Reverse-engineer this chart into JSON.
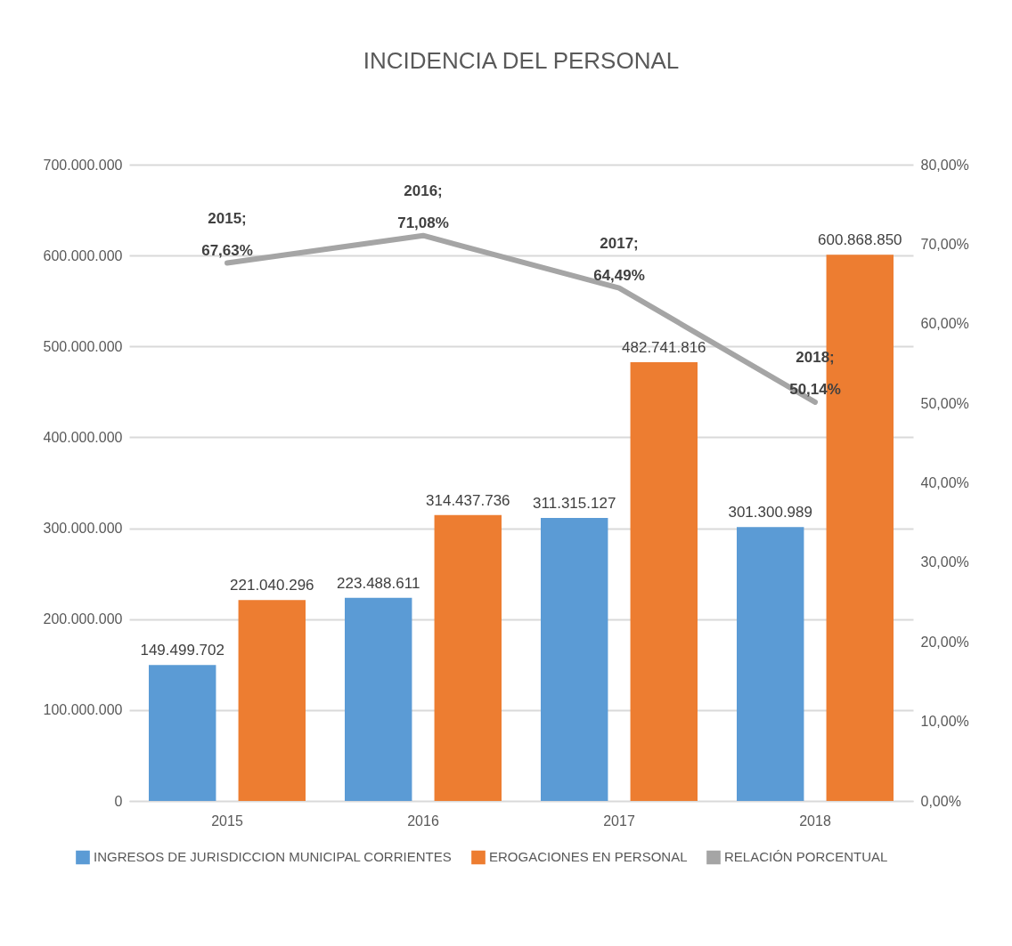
{
  "chart_data": {
    "type": "bar",
    "title": "INCIDENCIA DEL PERSONAL",
    "categories": [
      "2015",
      "2016",
      "2017",
      "2018"
    ],
    "series": [
      {
        "name": "INGRESOS DE JURISDICCION MUNICIPAL CORRIENTES",
        "color": "#5b9bd5",
        "values": [
          149499702,
          223488611,
          311315127,
          301300989
        ],
        "value_labels": [
          "149.499.702",
          "223.488.611",
          "311.315.127",
          "301.300.989"
        ]
      },
      {
        "name": "EROGACIONES EN PERSONAL",
        "color": "#ed7d31",
        "values": [
          221040296,
          314437736,
          482741816,
          600868850
        ],
        "value_labels": [
          "221.040.296",
          "314.437.736",
          "482.741.816",
          "600.868.850"
        ]
      },
      {
        "name": "RELACIÓN PORCENTUAL",
        "type": "line",
        "axis": "y2",
        "color": "#a5a5a5",
        "values": [
          67.63,
          71.08,
          64.49,
          50.14
        ],
        "value_labels": [
          "2015;\n67,63%",
          "2016;\n71,08%",
          "2017;\n64,49%",
          "2018;\n50,14%"
        ]
      }
    ],
    "ylim": [
      0,
      700000000
    ],
    "yticks": [
      0,
      {
        "value": 100000000,
        "label": "100.000.000"
      },
      {
        "value": 200000000,
        "label": "200.000.000"
      },
      {
        "value": 300000000,
        "label": "300.000.000"
      },
      {
        "value": 400000000,
        "label": "400.000.000"
      },
      {
        "value": 500000000,
        "label": "500.000.000"
      },
      {
        "value": 600000000,
        "label": "600.000.000"
      },
      {
        "value": 700000000,
        "label": "700.000.000"
      }
    ],
    "y2lim": [
      0,
      80
    ],
    "y2ticks": [
      {
        "value": 0,
        "label": "0,00%"
      },
      {
        "value": 10,
        "label": "10,00%"
      },
      {
        "value": 20,
        "label": "20,00%"
      },
      {
        "value": 30,
        "label": "30,00%"
      },
      {
        "value": 40,
        "label": "40,00%"
      },
      {
        "value": 50,
        "label": "50,00%"
      },
      {
        "value": 60,
        "label": "60,00%"
      },
      {
        "value": 70,
        "label": "70,00%"
      },
      {
        "value": 80,
        "label": "80,00%"
      }
    ],
    "grid": "y",
    "legend": "bottom",
    "marker": "none",
    "line_style": "solid"
  }
}
